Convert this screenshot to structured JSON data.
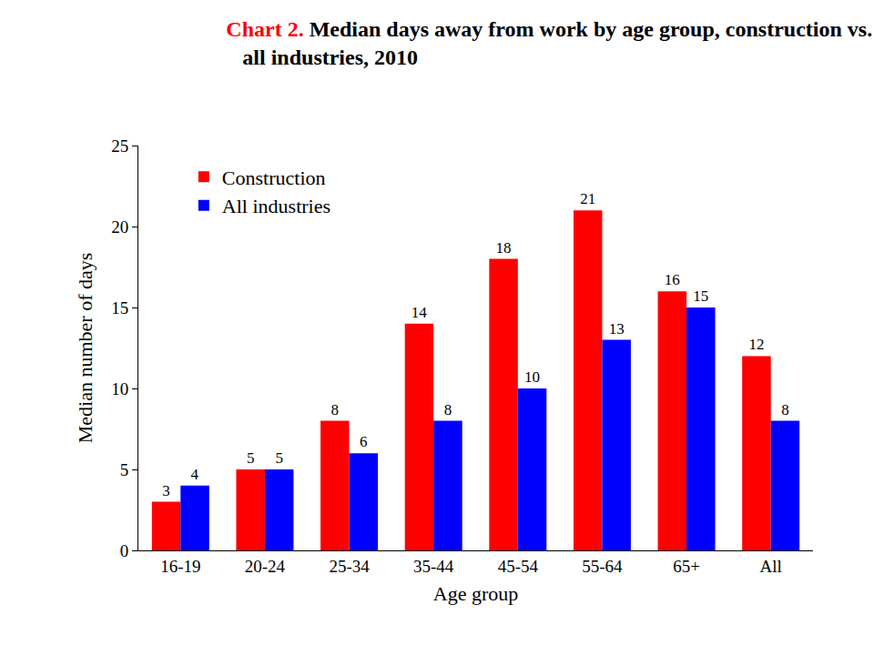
{
  "chart_data": {
    "type": "bar",
    "title": "Chart 2. Median days away from work by age group, construction vs. all industries, 2010",
    "x_label": "Age group",
    "y_label": "Median number of days",
    "categories": [
      "16-19",
      "20-24",
      "25-34",
      "35-44",
      "45-54",
      "55-64",
      "65+",
      "All"
    ],
    "series": [
      {
        "name": "Construction",
        "color": "#ff0000",
        "values": [
          3,
          5,
          8,
          14,
          18,
          21,
          16,
          12
        ]
      },
      {
        "name": "All industries",
        "color": "#0000ff",
        "values": [
          4,
          5,
          6,
          8,
          10,
          13,
          15,
          8
        ]
      }
    ],
    "ylim": [
      0,
      25
    ],
    "yticks": [
      0,
      5,
      10,
      15,
      20,
      25
    ],
    "grid": false,
    "legend": "top-left",
    "data_labels": true
  }
}
